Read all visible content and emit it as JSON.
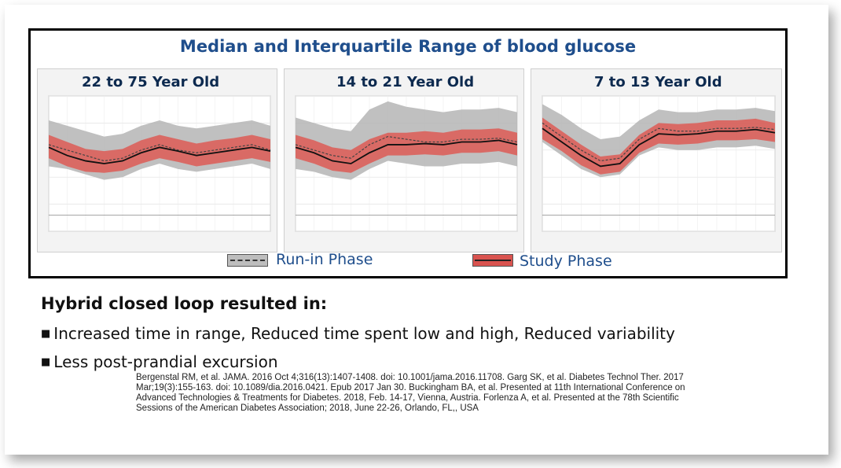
{
  "title": "Median and Interquartile Range of blood glucose",
  "panels": [
    {
      "label": "22 to 75 Year Old"
    },
    {
      "label": "14 to 21 Year Old"
    },
    {
      "label": "7 to 13 Year Old"
    }
  ],
  "legend": {
    "run_in": "Run-in Phase",
    "study": "Study Phase"
  },
  "colors": {
    "title": "#1f4e8c",
    "run_in_band": "#b5b5b5",
    "study_band": "#dd5a55",
    "study_inner": "#c9302c"
  },
  "summary": {
    "heading": "Hybrid closed loop resulted in:",
    "bullets": [
      "Increased time in range, Reduced time spent low and high, Reduced variability",
      "Less post-prandial excursion"
    ]
  },
  "references": "Bergenstal RM, et al. JAMA. 2016 Oct 4;316(13):1407-1408. doi: 10.1001/jama.2016.11708. Garg SK, et al. Diabetes Technol Ther. 2017 Mar;19(3):155-163. doi: 10.1089/dia.2016.0421. Epub 2017 Jan 30. Buckingham BA, et al. Presented at 11th International Conference on Advanced Technologies & Treatments for Diabetes. 2018, Feb. 14-17, Vienna, Austria. Forlenza A, et al. Presented at the 78th Scientific Sessions of the American Diabetes Association; 2018, June 22-26, Orlando, FL,, USA",
  "chart_data": [
    {
      "type": "area",
      "x_unit": "hour",
      "x": [
        0,
        2,
        4,
        6,
        8,
        10,
        12,
        14,
        16,
        18,
        20,
        22,
        24
      ],
      "ylim": [
        0,
        250
      ],
      "series": [
        {
          "name": "Run-in Phase",
          "median": [
            160,
            150,
            140,
            130,
            135,
            150,
            160,
            150,
            145,
            150,
            155,
            160,
            150
          ],
          "q1": [
            120,
            115,
            105,
            95,
            100,
            115,
            125,
            115,
            110,
            115,
            120,
            125,
            115
          ],
          "q3": [
            205,
            195,
            185,
            175,
            180,
            195,
            205,
            195,
            190,
            195,
            200,
            205,
            195
          ]
        },
        {
          "name": "Study Phase",
          "median": [
            155,
            140,
            130,
            125,
            130,
            145,
            155,
            148,
            140,
            145,
            150,
            155,
            148
          ],
          "q1": [
            135,
            120,
            110,
            108,
            112,
            125,
            135,
            128,
            120,
            125,
            130,
            135,
            128
          ],
          "q3": [
            178,
            165,
            152,
            148,
            152,
            168,
            178,
            170,
            162,
            168,
            172,
            178,
            170
          ]
        }
      ]
    },
    {
      "type": "area",
      "x_unit": "hour",
      "x": [
        0,
        2,
        4,
        6,
        8,
        10,
        12,
        14,
        16,
        18,
        20,
        22,
        24
      ],
      "ylim": [
        0,
        250
      ],
      "series": [
        {
          "name": "Run-in Phase",
          "median": [
            160,
            150,
            140,
            135,
            160,
            175,
            170,
            165,
            165,
            170,
            170,
            172,
            165
          ],
          "q1": [
            115,
            110,
            100,
            95,
            115,
            130,
            125,
            120,
            120,
            125,
            125,
            128,
            120
          ],
          "q3": [
            210,
            200,
            190,
            185,
            225,
            240,
            230,
            225,
            220,
            225,
            225,
            228,
            220
          ]
        },
        {
          "name": "Study Phase",
          "median": [
            155,
            145,
            130,
            125,
            145,
            160,
            160,
            162,
            160,
            165,
            165,
            168,
            160
          ],
          "q1": [
            135,
            125,
            112,
            108,
            125,
            140,
            140,
            142,
            140,
            145,
            145,
            148,
            140
          ],
          "q3": [
            178,
            168,
            155,
            150,
            170,
            182,
            182,
            185,
            182,
            188,
            188,
            190,
            182
          ]
        }
      ]
    },
    {
      "type": "area",
      "x_unit": "hour",
      "x": [
        0,
        2,
        4,
        6,
        8,
        10,
        12,
        14,
        16,
        18,
        20,
        22,
        24
      ],
      "ylim": [
        0,
        250
      ],
      "series": [
        {
          "name": "Run-in Phase",
          "median": [
            200,
            175,
            150,
            130,
            135,
            170,
            190,
            185,
            185,
            190,
            190,
            192,
            188
          ],
          "q1": [
            165,
            140,
            115,
            100,
            105,
            140,
            155,
            150,
            150,
            155,
            155,
            158,
            152
          ],
          "q3": [
            235,
            215,
            190,
            170,
            175,
            205,
            225,
            220,
            220,
            225,
            225,
            228,
            222
          ]
        },
        {
          "name": "Study Phase",
          "median": [
            190,
            165,
            140,
            120,
            125,
            160,
            180,
            178,
            180,
            185,
            185,
            188,
            182
          ],
          "q1": [
            170,
            148,
            122,
            105,
            110,
            145,
            162,
            160,
            162,
            168,
            168,
            170,
            165
          ],
          "q3": [
            210,
            185,
            160,
            138,
            142,
            178,
            200,
            198,
            200,
            205,
            205,
            208,
            200
          ]
        }
      ]
    }
  ]
}
